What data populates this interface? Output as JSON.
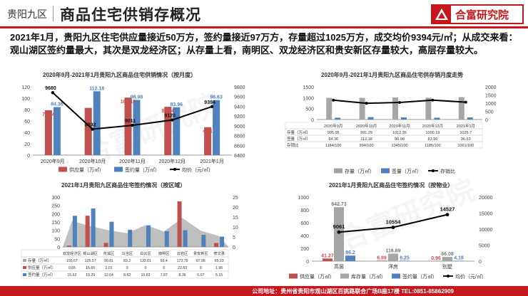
{
  "header": {
    "region": "贵阳九区",
    "title": "商品住宅供销存概况",
    "logo_text": "合富研究院"
  },
  "summary": "2021年1月，贵阳九区住宅供应量接近50万方，签约量接近97万方，存量超过1025万方，成交均价9394元/㎡；从成交来看：观山湖区签约量最大，其次是双龙经济区；从存量上看，南明区、双龙经济区和贵安新区存量较大，高层存量较大。",
  "watermark": "合富研究院",
  "footer": "公司地址：贵州省贵阳市观山湖区百挑路联合广场B座17楼    TEL:0851-85862909",
  "colors": {
    "brand": "#c8161d",
    "supply": "#c0504d",
    "sign": "#4f81bd",
    "stock_gray": "#a6a6a6",
    "line": "#000000"
  },
  "chart_data": [
    {
      "type": "bar",
      "title": "2020年9月-2021年1月贵阳九区商品住宅供销情况（按月度）",
      "categories": [
        "2020年9月",
        "2020年10月",
        "2020年11月",
        "2020年12月",
        "2021年1月"
      ],
      "series": [
        {
          "name": "供应量（万㎡）",
          "values": [
            78.84,
            83,
            101.13,
            84.84,
            49.1
          ]
        },
        {
          "name": "签约量（万㎡）",
          "values": [
            84.36,
            112.18,
            96.98,
            83.96,
            96.63
          ]
        },
        {
          "name": "均价（元/㎡）",
          "values": [
            9680,
            8932,
            9011,
            9120,
            9394
          ],
          "axis": "right",
          "type": "line"
        }
      ],
      "y_ticks": [
        "0",
        "20",
        "40",
        "60",
        "80",
        "100",
        "120"
      ],
      "y2_ticks": [
        "8400",
        "8600",
        "8800",
        "9000",
        "9200",
        "9400",
        "9600",
        "9800"
      ],
      "ylim": [
        0,
        120
      ],
      "y2lim": [
        8400,
        9800
      ]
    },
    {
      "type": "bar",
      "title": "2020年9月-2021年1月贵阳九区商品住宅供存销月度走势",
      "categories": [
        "2020年9月",
        "2020年10月",
        "2020年11月",
        "2020年12月",
        "2021年1月"
      ],
      "table_rows": [
        {
          "label": "存量（万㎡）",
          "values": [
            "995.95",
            "991.29",
            "1012.35",
            "1000.19",
            "1025.7"
          ]
        },
        {
          "label": "签量（万㎡）",
          "values": [
            "84.36",
            "112.18",
            "96.98",
            "83.96",
            "96.63"
          ]
        },
        {
          "label": "存销比",
          "values": [
            "1184/100",
            "994/100",
            "1045/100",
            "1185/100",
            "1061/100"
          ]
        }
      ],
      "series": [
        {
          "name": "存量（万㎡）",
          "values": [
            995.95,
            991.29,
            1012.35,
            1000.19,
            1025.7
          ]
        },
        {
          "name": "签量（万㎡）",
          "values": [
            84.36,
            112.18,
            96.98,
            83.96,
            96.63
          ]
        },
        {
          "name": "存销比",
          "values": [
            11.84,
            9.94,
            10.45,
            11.85,
            10.61
          ],
          "axis": "right",
          "type": "line"
        }
      ],
      "y_ticks": [
        "0",
        "500",
        "1000",
        "1500"
      ],
      "y2_ticks": [
        "0",
        "500",
        "1000",
        "1500",
        "2000"
      ],
      "ylim": [
        0,
        1500
      ],
      "y2lim": [
        0,
        20
      ]
    },
    {
      "type": "area",
      "title": "2021年1月贵阳九区商品住宅签约情况（按区域）",
      "categories": [
        "双龙经济区",
        "观山湖区",
        "花溪区",
        "乌当区",
        "白云区",
        "南明区",
        "云岩区",
        "贵安新区",
        "修文县"
      ],
      "table_rows": [
        {
          "label": "存量（万㎡）",
          "values": [
            "155.67",
            "125.57",
            "99.81",
            "83.2",
            "132.01",
            "93.4",
            "173.79",
            "97.96",
            "65.23"
          ]
        },
        {
          "label": "供应量（万㎡）",
          "values": [
            "0.65",
            "15.66",
            "2.01",
            "0",
            "0",
            "0",
            "22.83",
            "0",
            "1.96"
          ]
        },
        {
          "label": "签约量（万㎡）",
          "values": [
            "15.62",
            "19.29",
            "12.64",
            "8.62",
            "10.83",
            "7.87",
            "8.36",
            "6.07",
            "5.15"
          ]
        }
      ],
      "series": [
        {
          "name": "存量（万㎡）",
          "values": [
            155.67,
            125.57,
            99.81,
            83.2,
            132.01,
            93.4,
            173.79,
            97.96,
            65.23
          ],
          "type": "area"
        },
        {
          "name": "供应量（万㎡）",
          "values": [
            0.65,
            15.66,
            2.01,
            0,
            0,
            0,
            22.83,
            0,
            1.96
          ],
          "axis": "right"
        },
        {
          "name": "签约量（万㎡）",
          "values": [
            15.62,
            19.29,
            12.64,
            8.62,
            10.83,
            7.87,
            8.36,
            6.07,
            5.15
          ],
          "axis": "right"
        }
      ],
      "y_ticks": [
        "0",
        "50",
        "100",
        "150",
        "200",
        "250",
        "300"
      ],
      "y2_ticks": [
        "0",
        "5",
        "10",
        "15",
        "20",
        "25"
      ],
      "ylim": [
        0,
        300
      ],
      "y2lim": [
        0,
        25
      ]
    },
    {
      "type": "bar",
      "title": "2021年1月贵阳九区商品住宅签约情况（按物业）",
      "categories": [
        "高层",
        "洋房",
        "别墅"
      ],
      "series": [
        {
          "name": "供应量（万㎡）",
          "values": [
            41.27,
            6.89,
            0.96
          ]
        },
        {
          "name": "库存量（万㎡）",
          "values": [
            842.73,
            116.89,
            66.08
          ]
        },
        {
          "name": "签约量（万㎡）",
          "values": [
            86.2,
            6.25,
            4.18
          ]
        },
        {
          "name": "均价（元/㎡）",
          "values": [
            9061,
            10554,
            14527
          ],
          "axis": "right",
          "type": "line"
        }
      ],
      "y_ticks": [
        "0",
        "200",
        "400",
        "600",
        "800",
        "1000"
      ],
      "y2_ticks": [
        "0",
        "5000",
        "10000",
        "15000",
        "20000"
      ],
      "ylim": [
        0,
        1000
      ],
      "y2lim": [
        0,
        20000
      ]
    }
  ]
}
